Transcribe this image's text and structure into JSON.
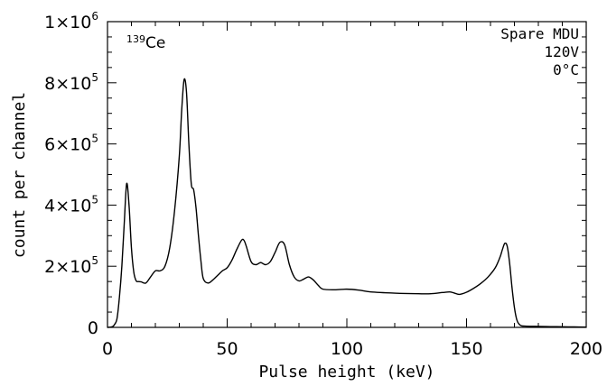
{
  "chart_data": {
    "type": "line",
    "xlabel": "Pulse height (keV)",
    "ylabel": "count per channel",
    "xlim": [
      0,
      200
    ],
    "ylim": [
      0,
      1000000
    ],
    "x_ticks": [
      0,
      50,
      100,
      150,
      200
    ],
    "x_tick_labels": [
      "0",
      "50",
      "100",
      "150",
      "200"
    ],
    "y_ticks": [
      0,
      200000,
      400000,
      600000,
      800000,
      1000000
    ],
    "y_tick_labels": [
      {
        "base": "0",
        "exp": ""
      },
      {
        "base": "2×10",
        "exp": "5"
      },
      {
        "base": "4×10",
        "exp": "5"
      },
      {
        "base": "6×10",
        "exp": "5"
      },
      {
        "base": "8×10",
        "exp": "5"
      },
      {
        "base": "1×10",
        "exp": "6"
      }
    ],
    "grid": false,
    "line_color": "#000000",
    "annotations": {
      "isotope_mass": "139",
      "isotope_element": "Ce",
      "detector": "Spare MDU",
      "voltage": "120V",
      "temperature": "0°C"
    },
    "series": [
      {
        "x": [
          0,
          2,
          3,
          4,
          5,
          6,
          7,
          8,
          9,
          10,
          11,
          12,
          13,
          14,
          16,
          18,
          20,
          22,
          24,
          26,
          28,
          30,
          31,
          32,
          33,
          34,
          35,
          36,
          37,
          38,
          39,
          40,
          42,
          44,
          46,
          48,
          50,
          52,
          54,
          56,
          57,
          58,
          60,
          62,
          64,
          66,
          68,
          70,
          72,
          74,
          76,
          78,
          80,
          82,
          84,
          86,
          88,
          90,
          95,
          100,
          105,
          110,
          120,
          130,
          135,
          140,
          143,
          145,
          147,
          150,
          153,
          156,
          159,
          162,
          164,
          165,
          166,
          167,
          168,
          169,
          170,
          171,
          172,
          173,
          175,
          178,
          180,
          185,
          190,
          195,
          200
        ],
        "y": [
          0,
          2000,
          10000,
          30000,
          100000,
          200000,
          340000,
          470000,
          400000,
          260000,
          180000,
          152000,
          150000,
          149000,
          145000,
          165000,
          185000,
          185000,
          200000,
          260000,
          380000,
          560000,
          710000,
          810000,
          770000,
          600000,
          470000,
          450000,
          390000,
          300000,
          220000,
          160000,
          145000,
          155000,
          170000,
          185000,
          195000,
          220000,
          255000,
          285000,
          285000,
          265000,
          215000,
          205000,
          212000,
          205000,
          215000,
          245000,
          278000,
          270000,
          205000,
          165000,
          152000,
          158000,
          165000,
          155000,
          138000,
          125000,
          123000,
          125000,
          122000,
          116000,
          112000,
          110000,
          110000,
          114000,
          116000,
          112000,
          108000,
          115000,
          128000,
          144000,
          165000,
          195000,
          230000,
          255000,
          275000,
          265000,
          210000,
          130000,
          65000,
          25000,
          10000,
          5000,
          4000,
          3500,
          3000,
          2500,
          2000,
          1500,
          1000
        ]
      }
    ]
  }
}
